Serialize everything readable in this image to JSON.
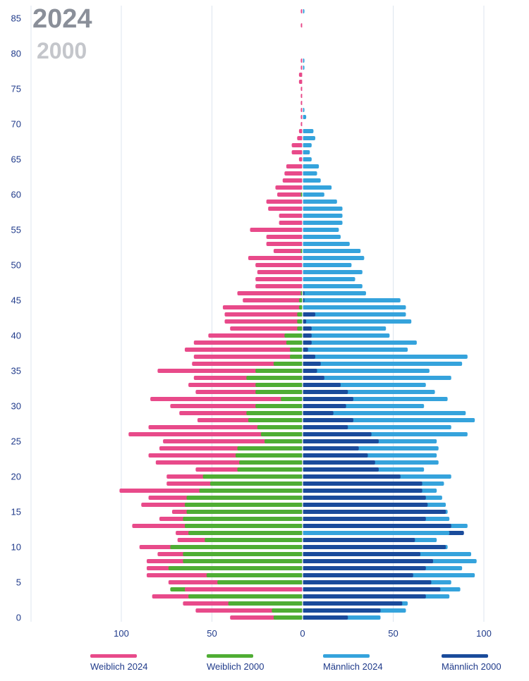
{
  "headline": {
    "year_primary": "2024",
    "year_secondary": "2000"
  },
  "legend": [
    {
      "label": "Weiblich 2024",
      "color": "#e84a8a"
    },
    {
      "label": "Weiblich 2000",
      "color": "#4fad34"
    },
    {
      "label": "Männlich 2024",
      "color": "#35a3dc"
    },
    {
      "label": "Männlich 2000",
      "color": "#1a4b9b"
    }
  ],
  "colors": {
    "female_2024": "#e84a8a",
    "female_2000": "#4fad34",
    "male_2024": "#35a3dc",
    "male_2000": "#1a4b9b",
    "axis_text": "#1f3a8a",
    "grid": "#dde5ef",
    "center_line": "#c8cdd4"
  },
  "chart_data": {
    "type": "bar",
    "orientation": "horizontal",
    "subtype": "population-pyramid",
    "age_ticks": [
      0,
      5,
      10,
      15,
      20,
      25,
      30,
      35,
      40,
      45,
      50,
      55,
      60,
      65,
      70,
      75,
      80,
      85
    ],
    "x_ticks": [
      {
        "value": -100,
        "label": "100"
      },
      {
        "value": -50,
        "label": "50"
      },
      {
        "value": 0,
        "label": "0"
      },
      {
        "value": 50,
        "label": "50"
      },
      {
        "value": 100,
        "label": "100"
      }
    ],
    "xlim": [
      -100,
      100
    ],
    "ylim": [
      0,
      86
    ],
    "ages": [
      0,
      1,
      2,
      3,
      4,
      5,
      6,
      7,
      8,
      9,
      10,
      11,
      12,
      13,
      14,
      15,
      16,
      17,
      18,
      19,
      20,
      21,
      22,
      23,
      24,
      25,
      26,
      27,
      28,
      29,
      30,
      31,
      32,
      33,
      34,
      35,
      36,
      37,
      38,
      39,
      40,
      41,
      42,
      43,
      44,
      45,
      46,
      47,
      48,
      49,
      50,
      51,
      52,
      53,
      54,
      55,
      56,
      57,
      58,
      59,
      60,
      61,
      62,
      63,
      64,
      65,
      66,
      67,
      68,
      69,
      70,
      71,
      72,
      73,
      74,
      75,
      76,
      77,
      78,
      79,
      80,
      81,
      82,
      83,
      84,
      85,
      86
    ],
    "series": [
      {
        "name": "Weiblich 2024",
        "side": "left",
        "values": [
          40,
          59,
          66,
          83,
          65,
          74,
          86,
          86,
          86,
          80,
          90,
          69,
          70,
          94,
          79,
          72,
          89,
          85,
          101,
          75,
          75,
          59,
          81,
          85,
          79,
          77,
          96,
          85,
          58,
          68,
          73,
          84,
          59,
          63,
          60,
          80,
          61,
          60,
          65,
          60,
          52,
          40,
          43,
          43,
          44,
          33,
          36,
          26,
          26,
          25,
          26,
          30,
          16,
          20,
          20,
          29,
          13,
          13,
          19,
          20,
          14,
          15,
          11,
          10,
          9,
          2,
          6,
          6,
          3,
          2,
          1,
          1,
          1,
          1,
          1,
          1,
          2,
          2,
          1,
          1,
          0,
          0,
          0,
          0,
          1,
          0,
          1
        ]
      },
      {
        "name": "Weiblich 2000",
        "side": "left",
        "values": [
          16,
          17,
          41,
          63,
          73,
          47,
          53,
          74,
          66,
          66,
          73,
          54,
          63,
          65,
          66,
          64,
          65,
          64,
          57,
          51,
          55,
          36,
          35,
          37,
          36,
          21,
          23,
          25,
          30,
          31,
          26,
          12,
          26,
          26,
          31,
          26,
          16,
          7,
          7,
          9,
          10,
          3,
          3,
          3,
          2,
          2,
          1,
          0,
          0,
          0,
          0,
          0,
          1,
          0,
          0,
          0,
          0,
          0,
          0,
          0,
          1,
          0,
          0,
          0,
          0,
          0,
          0,
          0,
          0,
          0,
          0,
          0,
          0,
          0,
          0,
          0,
          0,
          0,
          0,
          0,
          0,
          0,
          0,
          0,
          0,
          0,
          0
        ]
      },
      {
        "name": "Männlich 2024",
        "side": "right",
        "values": [
          43,
          57,
          58,
          81,
          87,
          82,
          95,
          88,
          96,
          93,
          80,
          74,
          81,
          91,
          81,
          80,
          79,
          77,
          74,
          78,
          82,
          67,
          75,
          74,
          75,
          74,
          91,
          82,
          95,
          90,
          67,
          80,
          73,
          68,
          82,
          70,
          88,
          91,
          58,
          63,
          48,
          46,
          60,
          57,
          57,
          54,
          35,
          33,
          29,
          33,
          27,
          34,
          32,
          26,
          21,
          20,
          22,
          22,
          22,
          19,
          12,
          16,
          10,
          8,
          9,
          5,
          4,
          5,
          7,
          6,
          0,
          2,
          1,
          0,
          0,
          0,
          0,
          0,
          1,
          1,
          0,
          0,
          0,
          0,
          0,
          0,
          1
        ]
      },
      {
        "name": "Männlich 2000",
        "side": "right",
        "values": [
          25,
          43,
          55,
          68,
          76,
          71,
          61,
          68,
          72,
          65,
          79,
          62,
          89,
          82,
          68,
          79,
          69,
          68,
          66,
          66,
          54,
          42,
          40,
          36,
          31,
          42,
          38,
          25,
          28,
          17,
          24,
          28,
          25,
          21,
          12,
          8,
          10,
          7,
          3,
          5,
          5,
          5,
          2,
          7,
          0,
          1,
          1,
          0,
          0,
          0,
          0,
          0,
          0,
          0,
          0,
          0,
          0,
          0,
          0,
          0,
          0,
          0,
          0,
          0,
          0,
          0,
          0,
          0,
          0,
          0,
          0,
          0,
          0,
          0,
          0,
          0,
          0,
          0,
          0,
          0,
          0,
          0,
          0,
          0,
          0,
          0,
          0
        ]
      }
    ],
    "title": "",
    "xlabel": "",
    "ylabel": "",
    "grid": true
  }
}
